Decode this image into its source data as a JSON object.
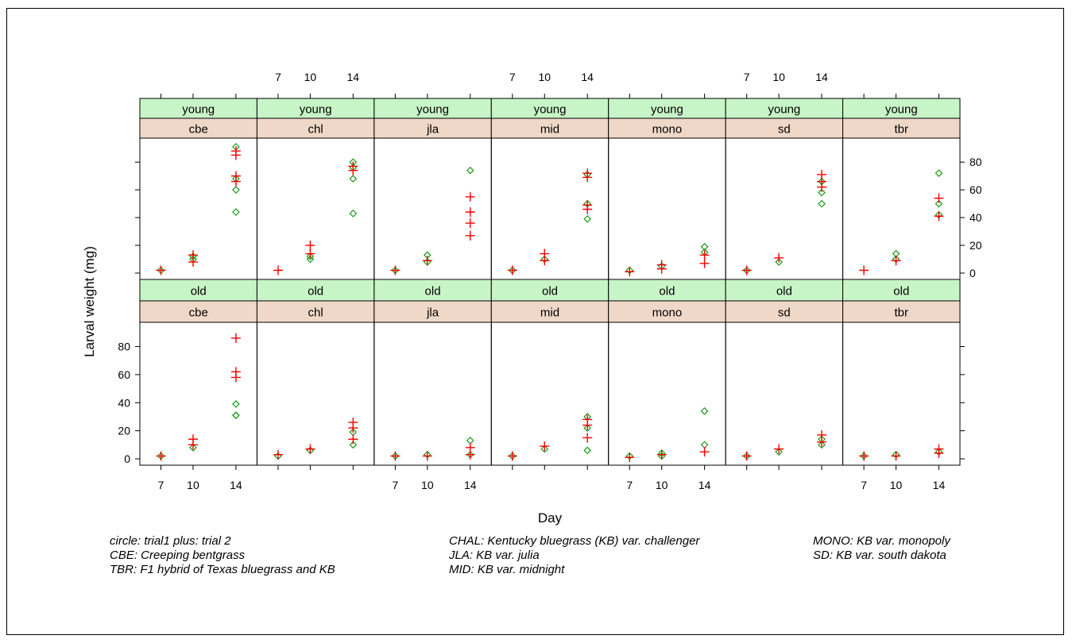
{
  "chart_data": {
    "type": "scatter",
    "x": [
      7,
      10,
      14
    ],
    "xlabel": "Day",
    "ylabel": "Larval weight (mg)",
    "ylim": [
      0,
      95
    ],
    "yticks": [
      0,
      20,
      40,
      60,
      80
    ],
    "age_labels": [
      "young",
      "old"
    ],
    "grass_labels": [
      "cbe",
      "chl",
      "jla",
      "mid",
      "mono",
      "sd",
      "tbr"
    ],
    "marker_legend": {
      "circle": "trial1",
      "plus": "trial 2"
    },
    "colors": {
      "trial1": "#1a9a1a",
      "trial2": "#ff0000",
      "strip_top": "#c8f5c8",
      "strip_bottom": "#f0d8c8"
    },
    "panels": [
      {
        "age": "young",
        "grass": "cbe",
        "trial1": [
          [
            7,
            2
          ],
          [
            10,
            10
          ],
          [
            10,
            12
          ],
          [
            14,
            91
          ],
          [
            14,
            60
          ],
          [
            14,
            44
          ],
          [
            14,
            68
          ]
        ],
        "trial2": [
          [
            7,
            2
          ],
          [
            10,
            8
          ],
          [
            10,
            13
          ],
          [
            14,
            88
          ],
          [
            14,
            85
          ],
          [
            14,
            70
          ],
          [
            14,
            66
          ]
        ]
      },
      {
        "age": "young",
        "grass": "chl",
        "trial1": [
          [
            10,
            10
          ],
          [
            10,
            12
          ],
          [
            14,
            80
          ],
          [
            14,
            76
          ],
          [
            14,
            68
          ],
          [
            14,
            43
          ]
        ],
        "trial2": [
          [
            7,
            2
          ],
          [
            10,
            14
          ],
          [
            10,
            20
          ],
          [
            14,
            77
          ],
          [
            14,
            74
          ]
        ]
      },
      {
        "age": "young",
        "grass": "jla",
        "trial1": [
          [
            7,
            2
          ],
          [
            10,
            8
          ],
          [
            10,
            13
          ],
          [
            14,
            74
          ]
        ],
        "trial2": [
          [
            7,
            2
          ],
          [
            10,
            9
          ],
          [
            14,
            55
          ],
          [
            14,
            44
          ],
          [
            14,
            36
          ],
          [
            14,
            27
          ]
        ]
      },
      {
        "age": "young",
        "grass": "mid",
        "trial1": [
          [
            7,
            2
          ],
          [
            10,
            10
          ],
          [
            14,
            71
          ],
          [
            14,
            50
          ],
          [
            14,
            39
          ]
        ],
        "trial2": [
          [
            7,
            2
          ],
          [
            10,
            14
          ],
          [
            10,
            9
          ],
          [
            14,
            72
          ],
          [
            14,
            69
          ],
          [
            14,
            49
          ],
          [
            14,
            46
          ]
        ]
      },
      {
        "age": "young",
        "grass": "mono",
        "trial1": [
          [
            7,
            2
          ],
          [
            10,
            5
          ],
          [
            14,
            19
          ],
          [
            14,
            15
          ]
        ],
        "trial2": [
          [
            7,
            1
          ],
          [
            10,
            6
          ],
          [
            10,
            3
          ],
          [
            14,
            13
          ],
          [
            14,
            7
          ]
        ]
      },
      {
        "age": "young",
        "grass": "sd",
        "trial1": [
          [
            7,
            2
          ],
          [
            10,
            8
          ],
          [
            14,
            66
          ],
          [
            14,
            58
          ],
          [
            14,
            50
          ]
        ],
        "trial2": [
          [
            7,
            2
          ],
          [
            10,
            11
          ],
          [
            14,
            71
          ],
          [
            14,
            66
          ],
          [
            14,
            62
          ]
        ]
      },
      {
        "age": "young",
        "grass": "tbr",
        "trial1": [
          [
            10,
            14
          ],
          [
            10,
            10
          ],
          [
            14,
            72
          ],
          [
            14,
            50
          ],
          [
            14,
            42
          ]
        ],
        "trial2": [
          [
            7,
            2
          ],
          [
            10,
            9
          ],
          [
            14,
            54
          ],
          [
            14,
            41
          ]
        ]
      },
      {
        "age": "old",
        "grass": "cbe",
        "trial1": [
          [
            7,
            2
          ],
          [
            10,
            8
          ],
          [
            14,
            39
          ],
          [
            14,
            31
          ],
          [
            14,
            31
          ]
        ],
        "trial2": [
          [
            7,
            2
          ],
          [
            10,
            14
          ],
          [
            10,
            10
          ],
          [
            14,
            86
          ],
          [
            14,
            62
          ],
          [
            14,
            58
          ]
        ]
      },
      {
        "age": "old",
        "grass": "chl",
        "trial1": [
          [
            7,
            2
          ],
          [
            10,
            6
          ],
          [
            14,
            19
          ],
          [
            14,
            10
          ]
        ],
        "trial2": [
          [
            7,
            3
          ],
          [
            10,
            7
          ],
          [
            14,
            26
          ],
          [
            14,
            22
          ],
          [
            14,
            14
          ]
        ]
      },
      {
        "age": "old",
        "grass": "jla",
        "trial1": [
          [
            7,
            2
          ],
          [
            10,
            3
          ],
          [
            14,
            13
          ],
          [
            14,
            3
          ]
        ],
        "trial2": [
          [
            7,
            2
          ],
          [
            10,
            2
          ],
          [
            14,
            8
          ],
          [
            14,
            3
          ]
        ]
      },
      {
        "age": "old",
        "grass": "mid",
        "trial1": [
          [
            7,
            2
          ],
          [
            10,
            7
          ],
          [
            14,
            30
          ],
          [
            14,
            22
          ],
          [
            14,
            6
          ]
        ],
        "trial2": [
          [
            7,
            2
          ],
          [
            10,
            9
          ],
          [
            14,
            28
          ],
          [
            14,
            24
          ],
          [
            14,
            15
          ]
        ]
      },
      {
        "age": "old",
        "grass": "mono",
        "trial1": [
          [
            7,
            2
          ],
          [
            10,
            4
          ],
          [
            10,
            2
          ],
          [
            14,
            34
          ],
          [
            14,
            10
          ]
        ],
        "trial2": [
          [
            7,
            1
          ],
          [
            10,
            3
          ],
          [
            14,
            5
          ]
        ]
      },
      {
        "age": "old",
        "grass": "sd",
        "trial1": [
          [
            7,
            2
          ],
          [
            10,
            5
          ],
          [
            14,
            14
          ],
          [
            14,
            10
          ]
        ],
        "trial2": [
          [
            7,
            2
          ],
          [
            10,
            7
          ],
          [
            14,
            17
          ],
          [
            14,
            12
          ]
        ]
      },
      {
        "age": "old",
        "grass": "tbr",
        "trial1": [
          [
            7,
            2
          ],
          [
            10,
            3
          ],
          [
            14,
            5
          ]
        ],
        "trial2": [
          [
            7,
            2
          ],
          [
            10,
            2
          ],
          [
            14,
            7
          ],
          [
            14,
            4
          ]
        ]
      }
    ]
  },
  "legend_text": {
    "col1": [
      "circle: trial1 plus: trial 2",
      "CBE: Creeping bentgrass",
      "TBR: F1 hybrid of Texas bluegrass and KB"
    ],
    "col2": [
      "CHAL: Kentucky bluegrass (KB) var. challenger",
      "JLA: KB var. julia",
      "MID: KB var. midnight"
    ],
    "col3": [
      "MONO: KB var. monopoly",
      "SD: KB var. south dakota"
    ]
  }
}
